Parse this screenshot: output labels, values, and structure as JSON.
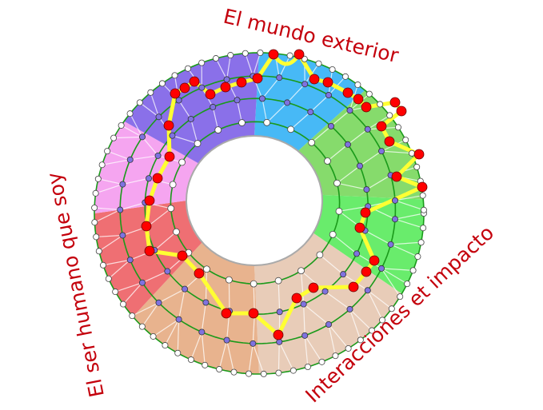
{
  "labels": {
    "top": "El mundo exterior",
    "left": "El ser humano que soy",
    "bottom_right": "Interacciones et impacto"
  },
  "sectors": [
    {
      "color": "#47b9f6"
    },
    {
      "color": "#86db6c"
    },
    {
      "color": "#69ec6c"
    },
    {
      "color": "#e8ccb8"
    },
    {
      "color": "#e8b38e"
    },
    {
      "color": "#ef6f73"
    },
    {
      "color": "#f5a5f0"
    },
    {
      "color": "#8a70e9"
    }
  ],
  "colors": {
    "label": "#c4000c",
    "ring_line": "#1a9a1a",
    "path": "#ffff33",
    "path_node": "#ff0000",
    "mid_node": "#7f72e0",
    "edge_node": "#ffffff",
    "spoke": "#ffffff"
  }
}
